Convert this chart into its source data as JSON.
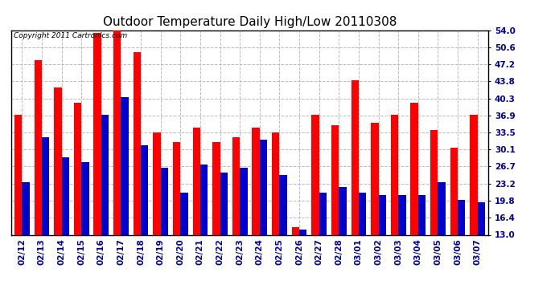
{
  "title": "Outdoor Temperature Daily High/Low 20110308",
  "copyright_text": "Copyright 2011 Cartronics.com",
  "dates": [
    "02/12",
    "02/13",
    "02/14",
    "02/15",
    "02/16",
    "02/17",
    "02/18",
    "02/19",
    "02/20",
    "02/21",
    "02/22",
    "02/23",
    "02/24",
    "02/25",
    "02/26",
    "02/27",
    "02/28",
    "03/01",
    "03/02",
    "03/03",
    "03/04",
    "03/05",
    "03/06",
    "03/07"
  ],
  "highs": [
    37.0,
    48.0,
    42.5,
    39.5,
    53.5,
    54.0,
    49.5,
    33.5,
    31.5,
    34.5,
    31.5,
    32.5,
    34.5,
    33.5,
    14.5,
    37.0,
    35.0,
    44.0,
    35.5,
    37.0,
    39.5,
    34.0,
    30.5,
    37.0
  ],
  "lows": [
    23.5,
    32.5,
    28.5,
    27.5,
    37.0,
    40.5,
    31.0,
    26.5,
    21.5,
    27.0,
    25.5,
    26.5,
    32.0,
    25.0,
    14.0,
    21.5,
    22.5,
    21.5,
    21.0,
    21.0,
    21.0,
    23.5,
    20.0,
    19.5
  ],
  "ylim_min": 13.0,
  "ylim_max": 54.0,
  "yticks": [
    13.0,
    16.4,
    19.8,
    23.2,
    26.7,
    30.1,
    33.5,
    36.9,
    40.3,
    43.8,
    47.2,
    50.6,
    54.0
  ],
  "bar_width": 0.38,
  "high_color": "#ff0000",
  "low_color": "#0000cc",
  "bg_color": "#ffffff",
  "plot_bg_color": "#ffffff",
  "grid_color": "#bbbbbb",
  "title_fontsize": 11,
  "tick_fontsize": 7.5,
  "copyright_fontsize": 6.5
}
